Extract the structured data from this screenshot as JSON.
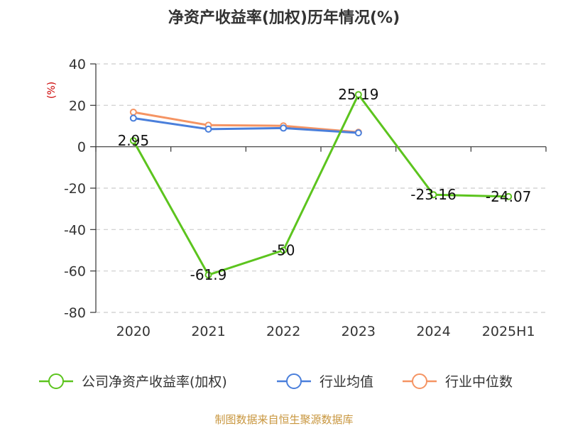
{
  "title": "净资产收益率(加权)历年情况(%)",
  "source": "制图数据来自恒生聚源数据库",
  "chart_data": {
    "type": "line",
    "title": "净资产收益率(加权)历年情况(%)",
    "ylabel": "(%)",
    "ylim": [
      -80,
      40
    ],
    "yticks": [
      40,
      20,
      0,
      -20,
      -40,
      -60,
      -80
    ],
    "categories": [
      "2020",
      "2021",
      "2022",
      "2023",
      "2024",
      "2025H1"
    ],
    "grid": true,
    "legend_position": "bottom",
    "series": [
      {
        "name": "公司净资产收益率(加权)",
        "color": "#5cc41e",
        "values": [
          2.95,
          -61.9,
          -50,
          25.19,
          -23.16,
          -24.07
        ],
        "labels": [
          "2.95",
          "-61.9",
          "-50",
          "25.19",
          "-23.16",
          "-24.07"
        ]
      },
      {
        "name": "行业均值",
        "color": "#4a7fdb",
        "values": [
          13.8,
          8.5,
          9.0,
          6.7,
          null,
          null
        ]
      },
      {
        "name": "行业中位数",
        "color": "#f59463",
        "values": [
          16.7,
          10.4,
          10.1,
          7.0,
          null,
          null
        ]
      }
    ]
  }
}
